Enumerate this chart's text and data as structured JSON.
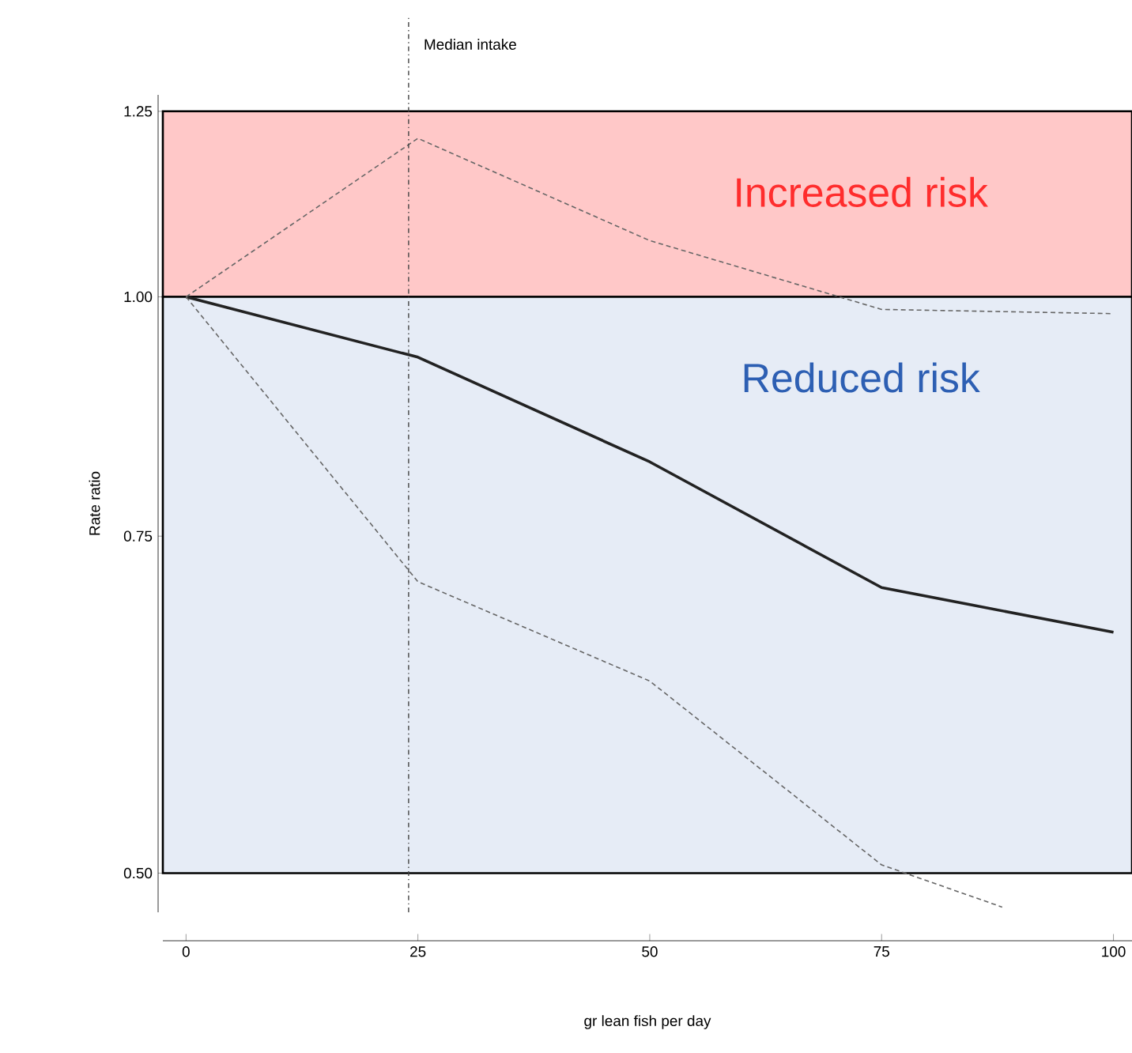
{
  "chart_data": {
    "type": "line",
    "xlabel": "gr lean fish per day",
    "ylabel": "Rate ratio",
    "log": "y",
    "xlim": [
      -2.5,
      102
    ],
    "ylim": [
      0.477,
      1.275
    ],
    "xticks": [
      0,
      25,
      50,
      75,
      100
    ],
    "yticks": [
      {
        "value": 0.5,
        "label": "0.50"
      },
      {
        "value": 0.75,
        "label": "0.75"
      },
      {
        "value": 1.0,
        "label": "1.00"
      },
      {
        "value": 1.25,
        "label": "1.25"
      }
    ],
    "series": [
      {
        "color": "#222222",
        "line_style": "solid",
        "x": [
          0,
          25,
          50,
          75,
          100
        ],
        "values": [
          1.0,
          0.93,
          0.82,
          0.705,
          0.668
        ]
      },
      {
        "color": "#666666",
        "line_style": "dashed",
        "x": [
          0,
          25,
          50,
          75,
          100
        ],
        "values": [
          1.0,
          1.21,
          1.07,
          0.985,
          0.98
        ]
      },
      {
        "color": "#666666",
        "line_style": "dashed",
        "x": [
          0,
          25,
          50,
          75,
          88
        ],
        "values": [
          1.0,
          0.71,
          0.63,
          0.505,
          0.48
        ]
      }
    ],
    "bands": [
      {
        "axis": "y",
        "from": 1.0,
        "to": 1.25,
        "label": "Increased risk",
        "color": "#ffc8c8"
      },
      {
        "axis": "y",
        "from": 0.5,
        "to": 1.0,
        "label": "Reduced risk",
        "color": "#e6ecf6"
      }
    ],
    "ref_lines": [
      {
        "axis": "x",
        "value": 24,
        "label": "Median intake",
        "color": "#444444",
        "line_style": "dashdot"
      }
    ],
    "grid": false,
    "marker": "none"
  }
}
